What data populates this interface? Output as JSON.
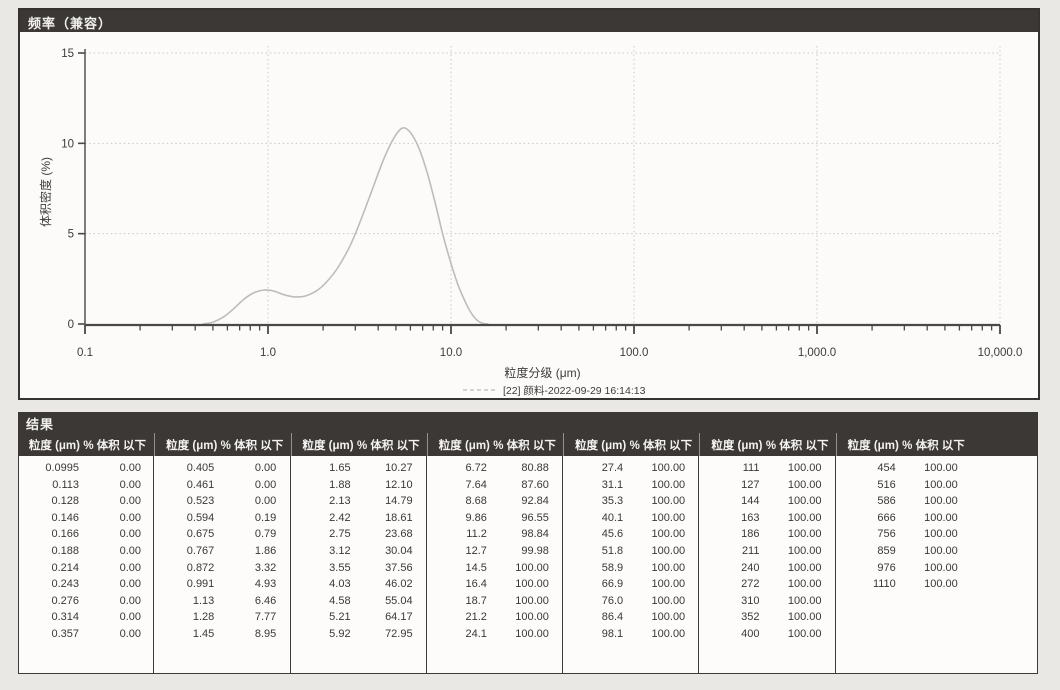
{
  "chart_panel": {
    "title": "频率（兼容）"
  },
  "chart_data": {
    "type": "line",
    "title": "频率（兼容）",
    "xlabel": "粒度分级 (μm)",
    "ylabel": "体积密度 (%)",
    "x_scale": "log",
    "xlim": [
      0.1,
      10000
    ],
    "ylim": [
      0,
      15
    ],
    "x_tick_labels": [
      "0.1",
      "1.0",
      "10.0",
      "100.0",
      "1,000.0",
      "10,000.0"
    ],
    "y_tick_labels": [
      "0",
      "5",
      "10",
      "15"
    ],
    "grid": true,
    "legend_position": "bottom",
    "series": [
      {
        "name": "[22] 颜料-2022-09-29 16:14:13",
        "color": "#bdbcba",
        "points": [
          [
            0.44,
            0
          ],
          [
            0.5,
            0.1
          ],
          [
            0.57,
            0.38
          ],
          [
            0.65,
            0.85
          ],
          [
            0.74,
            1.38
          ],
          [
            0.84,
            1.74
          ],
          [
            0.95,
            1.88
          ],
          [
            1.08,
            1.82
          ],
          [
            1.22,
            1.62
          ],
          [
            1.4,
            1.5
          ],
          [
            1.6,
            1.55
          ],
          [
            1.85,
            1.85
          ],
          [
            2.1,
            2.35
          ],
          [
            2.4,
            3.1
          ],
          [
            2.8,
            4.3
          ],
          [
            3.2,
            5.7
          ],
          [
            3.7,
            7.4
          ],
          [
            4.2,
            8.9
          ],
          [
            4.7,
            10.0
          ],
          [
            5.2,
            10.7
          ],
          [
            5.6,
            10.85
          ],
          [
            6.1,
            10.5
          ],
          [
            6.7,
            9.7
          ],
          [
            7.4,
            8.4
          ],
          [
            8.2,
            6.7
          ],
          [
            9.0,
            5.0
          ],
          [
            9.9,
            3.5
          ],
          [
            10.9,
            2.2
          ],
          [
            12.0,
            1.2
          ],
          [
            13.0,
            0.55
          ],
          [
            14.0,
            0.18
          ],
          [
            15.0,
            0.03
          ],
          [
            16.0,
            0
          ]
        ]
      }
    ]
  },
  "results": {
    "title": "结果",
    "header": {
      "size": "粒度 (μm)",
      "pct": "% 体积 以下"
    },
    "columns": [
      [
        [
          "0.0995",
          "0.00"
        ],
        [
          "0.113",
          "0.00"
        ],
        [
          "0.128",
          "0.00"
        ],
        [
          "0.146",
          "0.00"
        ],
        [
          "0.166",
          "0.00"
        ],
        [
          "0.188",
          "0.00"
        ],
        [
          "0.214",
          "0.00"
        ],
        [
          "0.243",
          "0.00"
        ],
        [
          "0.276",
          "0.00"
        ],
        [
          "0.314",
          "0.00"
        ],
        [
          "0.357",
          "0.00"
        ]
      ],
      [
        [
          "0.405",
          "0.00"
        ],
        [
          "0.461",
          "0.00"
        ],
        [
          "0.523",
          "0.00"
        ],
        [
          "0.594",
          "0.19"
        ],
        [
          "0.675",
          "0.79"
        ],
        [
          "0.767",
          "1.86"
        ],
        [
          "0.872",
          "3.32"
        ],
        [
          "0.991",
          "4.93"
        ],
        [
          "1.13",
          "6.46"
        ],
        [
          "1.28",
          "7.77"
        ],
        [
          "1.45",
          "8.95"
        ]
      ],
      [
        [
          "1.65",
          "10.27"
        ],
        [
          "1.88",
          "12.10"
        ],
        [
          "2.13",
          "14.79"
        ],
        [
          "2.42",
          "18.61"
        ],
        [
          "2.75",
          "23.68"
        ],
        [
          "3.12",
          "30.04"
        ],
        [
          "3.55",
          "37.56"
        ],
        [
          "4.03",
          "46.02"
        ],
        [
          "4.58",
          "55.04"
        ],
        [
          "5.21",
          "64.17"
        ],
        [
          "5.92",
          "72.95"
        ]
      ],
      [
        [
          "6.72",
          "80.88"
        ],
        [
          "7.64",
          "87.60"
        ],
        [
          "8.68",
          "92.84"
        ],
        [
          "9.86",
          "96.55"
        ],
        [
          "11.2",
          "98.84"
        ],
        [
          "12.7",
          "99.98"
        ],
        [
          "14.5",
          "100.00"
        ],
        [
          "16.4",
          "100.00"
        ],
        [
          "18.7",
          "100.00"
        ],
        [
          "21.2",
          "100.00"
        ],
        [
          "24.1",
          "100.00"
        ]
      ],
      [
        [
          "27.4",
          "100.00"
        ],
        [
          "31.1",
          "100.00"
        ],
        [
          "35.3",
          "100.00"
        ],
        [
          "40.1",
          "100.00"
        ],
        [
          "45.6",
          "100.00"
        ],
        [
          "51.8",
          "100.00"
        ],
        [
          "58.9",
          "100.00"
        ],
        [
          "66.9",
          "100.00"
        ],
        [
          "76.0",
          "100.00"
        ],
        [
          "86.4",
          "100.00"
        ],
        [
          "98.1",
          "100.00"
        ]
      ],
      [
        [
          "111",
          "100.00"
        ],
        [
          "127",
          "100.00"
        ],
        [
          "144",
          "100.00"
        ],
        [
          "163",
          "100.00"
        ],
        [
          "186",
          "100.00"
        ],
        [
          "211",
          "100.00"
        ],
        [
          "240",
          "100.00"
        ],
        [
          "272",
          "100.00"
        ],
        [
          "310",
          "100.00"
        ],
        [
          "352",
          "100.00"
        ],
        [
          "400",
          "100.00"
        ]
      ],
      [
        [
          "454",
          "100.00"
        ],
        [
          "516",
          "100.00"
        ],
        [
          "586",
          "100.00"
        ],
        [
          "666",
          "100.00"
        ],
        [
          "756",
          "100.00"
        ],
        [
          "859",
          "100.00"
        ],
        [
          "976",
          "100.00"
        ],
        [
          "1110",
          "100.00"
        ]
      ]
    ]
  },
  "colors": {
    "panel_header_bg": "#3b3835",
    "panel_header_text": "#f2f1ef",
    "chart_bg": "#fcfbf9",
    "grid": "#c9c8c3",
    "axis": "#4a4744",
    "curve": "#bdbcba",
    "page_bg": "#eae8e5"
  }
}
